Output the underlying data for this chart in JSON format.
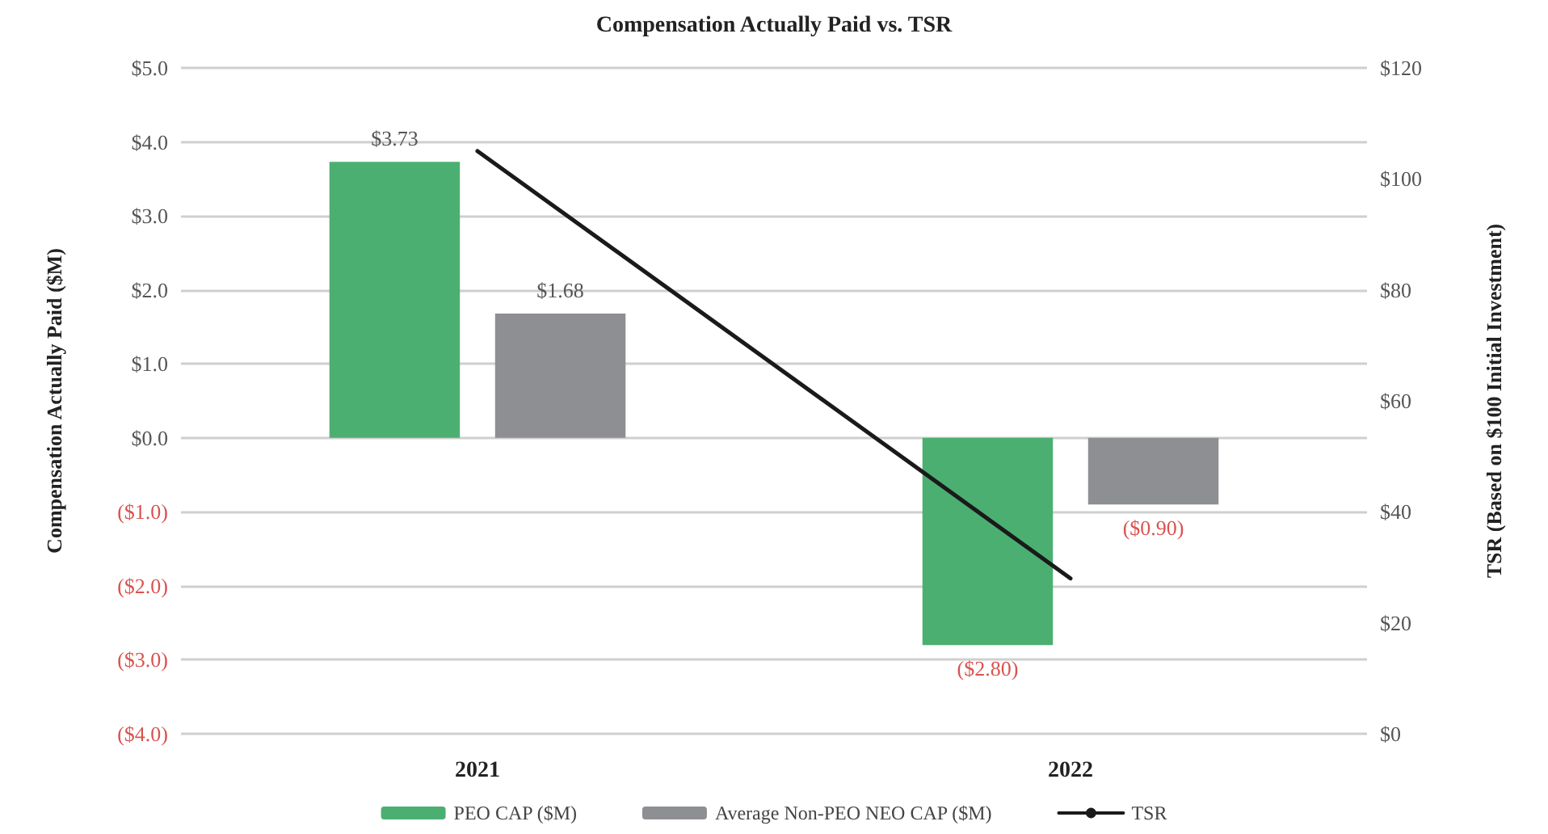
{
  "chart_data": {
    "type": "bar",
    "title": "Compensation Actually Paid vs. TSR",
    "ylabel": "Compensation Actually Paid ($M)",
    "y2label": "TSR (Based on $100 Initial Investment)",
    "categories": [
      "2021",
      "2022"
    ],
    "series": [
      {
        "name": "PEO CAP ($M)",
        "color": "#4caf72",
        "values": [
          3.73,
          -2.8
        ],
        "value_labels": [
          "$3.73",
          "($2.80)"
        ]
      },
      {
        "name": "Average Non-PEO NEO CAP ($M)",
        "color": "#8e8f92",
        "values": [
          1.68,
          -0.9
        ],
        "value_labels": [
          "$1.68",
          "($0.90)"
        ]
      },
      {
        "name": "TSR",
        "type": "line",
        "axis": "y2",
        "color": "#1a1a1a",
        "values": [
          105,
          28
        ],
        "marker": "none"
      }
    ],
    "ylim": [
      -4,
      5
    ],
    "yticks": [
      {
        "value": -4,
        "label": "($4.0)"
      },
      {
        "value": -3,
        "label": "($3.0)"
      },
      {
        "value": -2,
        "label": "($2.0)"
      },
      {
        "value": -1,
        "label": "($1.0)"
      },
      {
        "value": 0,
        "label": "$0.0"
      },
      {
        "value": 1,
        "label": "$1.0"
      },
      {
        "value": 2,
        "label": "$2.0"
      },
      {
        "value": 3,
        "label": "$3.0"
      },
      {
        "value": 4,
        "label": "$4.0"
      },
      {
        "value": 5,
        "label": "$5.0"
      }
    ],
    "y2lim": [
      0,
      120
    ],
    "y2ticks": [
      {
        "value": 0,
        "label": "$0"
      },
      {
        "value": 20,
        "label": "$20"
      },
      {
        "value": 40,
        "label": "$40"
      },
      {
        "value": 60,
        "label": "$60"
      },
      {
        "value": 80,
        "label": "$80"
      },
      {
        "value": 100,
        "label": "$100"
      },
      {
        "value": 120,
        "label": "$120"
      }
    ],
    "grid": "y",
    "legend": "bottom"
  }
}
